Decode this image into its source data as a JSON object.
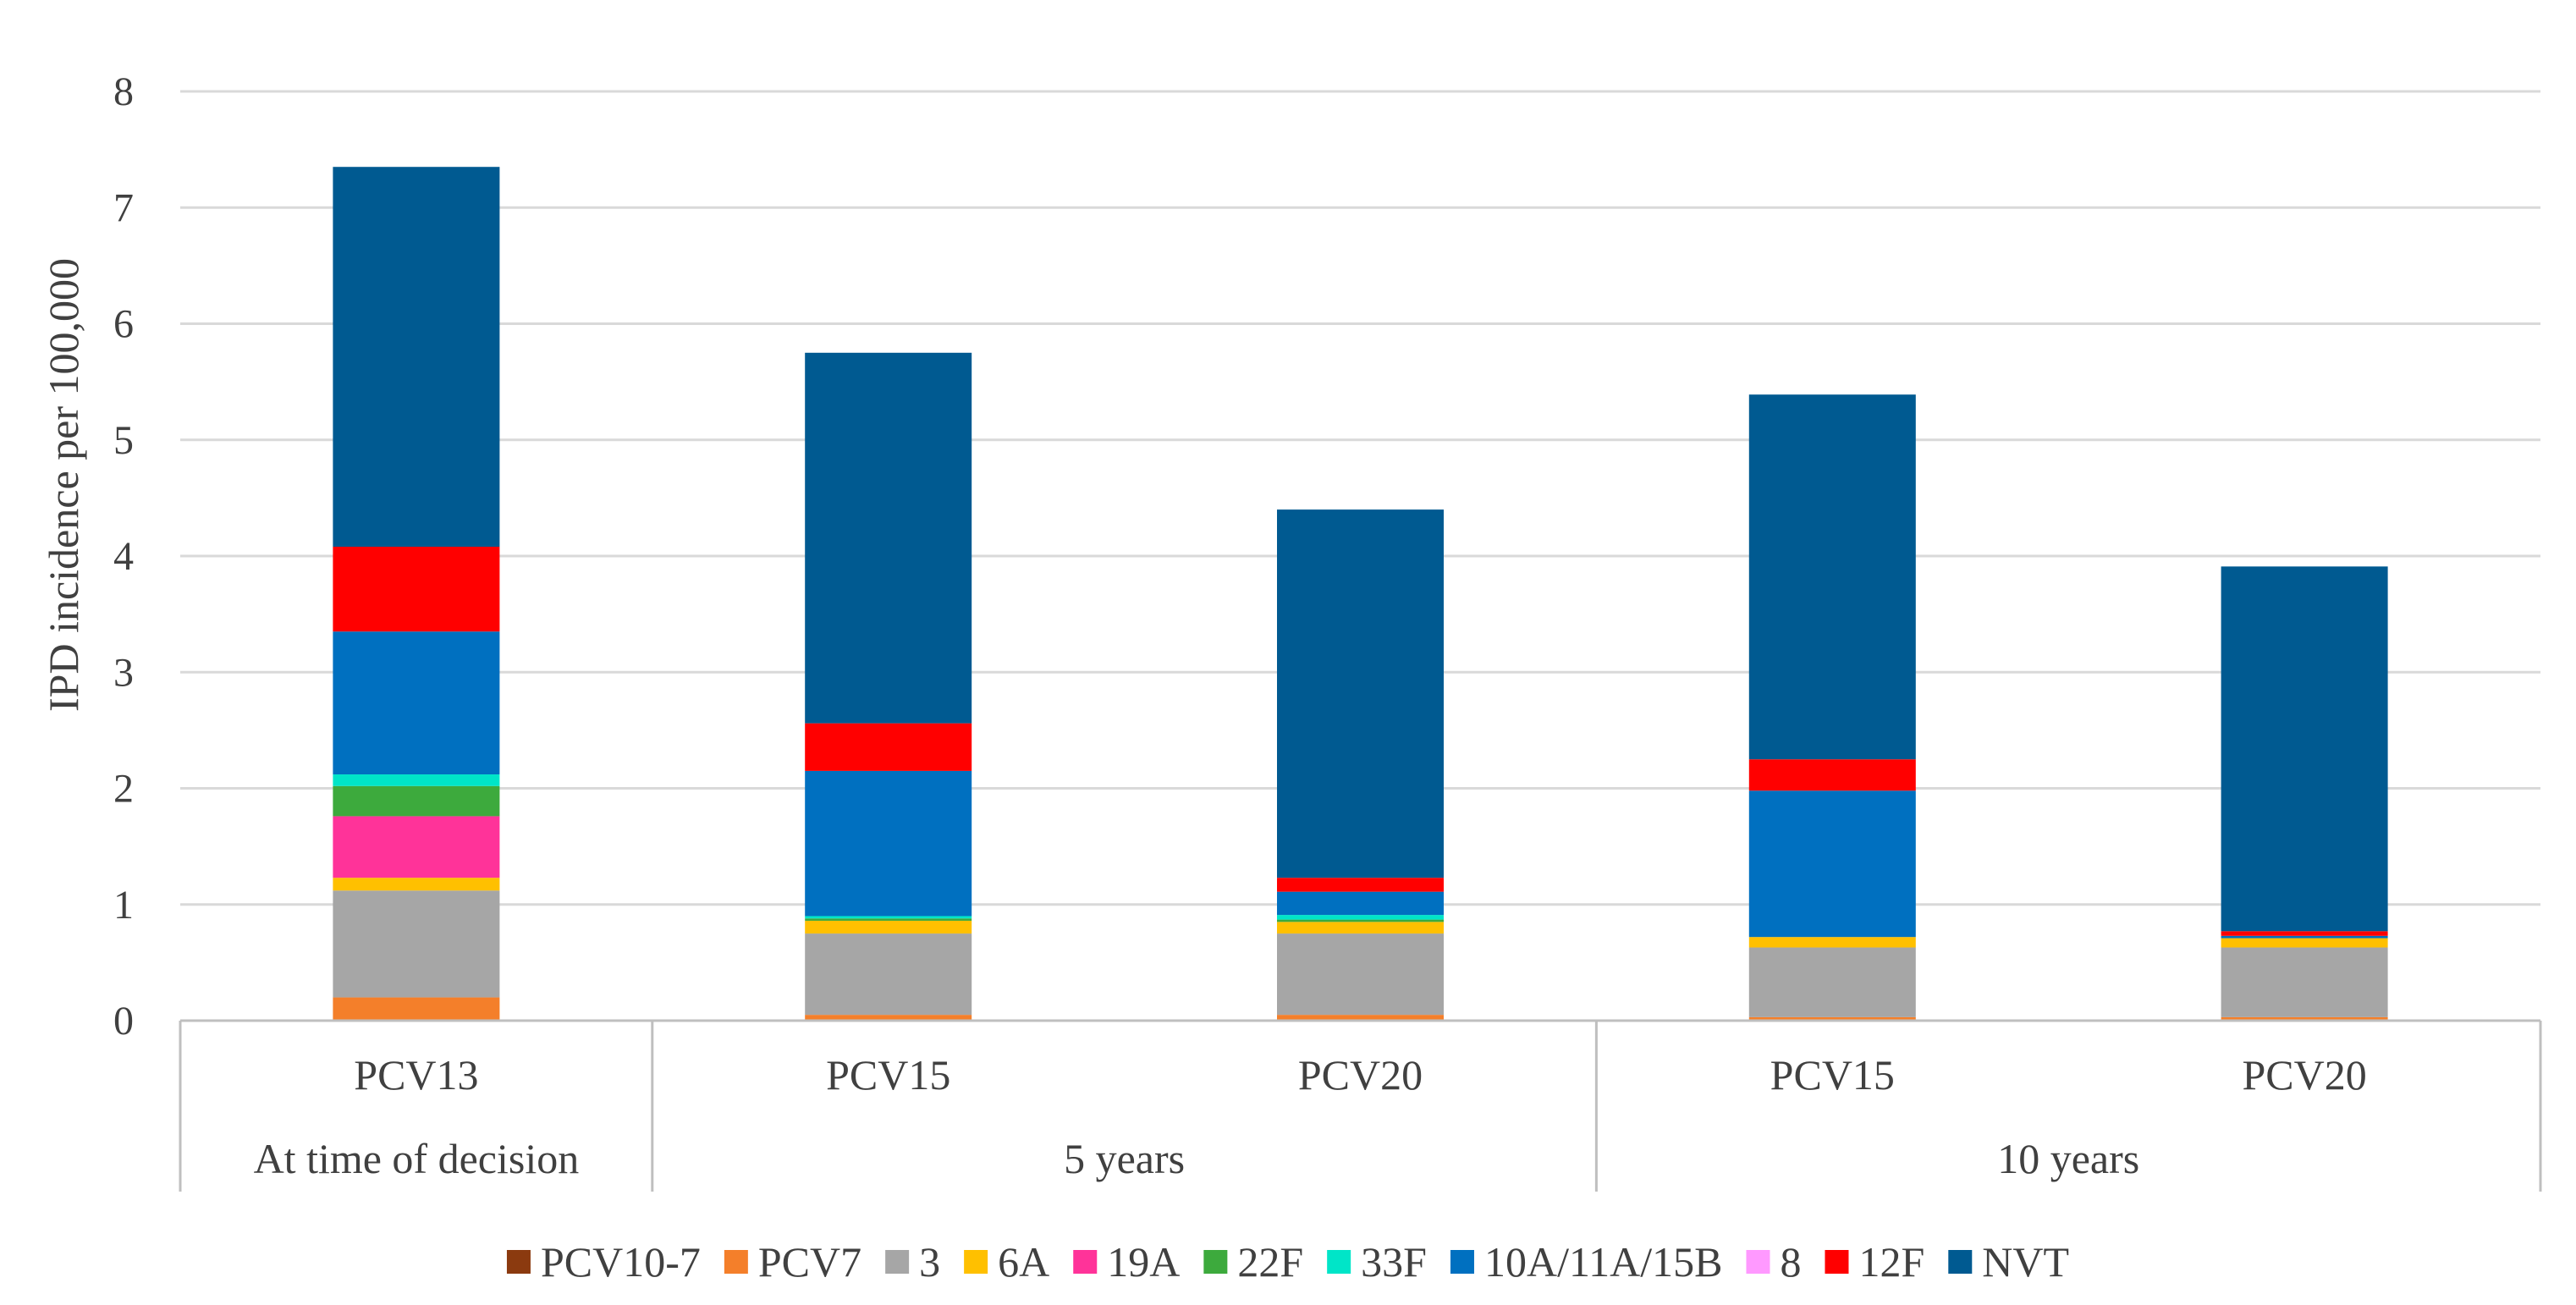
{
  "chart_data": {
    "type": "bar",
    "stacked": true,
    "title": "",
    "xlabel": "",
    "ylabel": "IPD incidence per 100,000",
    "ylim": [
      0,
      8
    ],
    "yticks": [
      0,
      1,
      2,
      3,
      4,
      5,
      6,
      7,
      8
    ],
    "grid": true,
    "legend_position": "bottom",
    "categories": [
      "PCV13",
      "PCV15",
      "PCV20",
      "PCV15",
      "PCV20"
    ],
    "groups": [
      {
        "label": "At time of decision",
        "categories": [
          0
        ]
      },
      {
        "label": "5 years",
        "categories": [
          1,
          2
        ]
      },
      {
        "label": "10 years",
        "categories": [
          3,
          4
        ]
      }
    ],
    "series": [
      {
        "name": "PCV10-7",
        "color": "#8B3A0F",
        "values": [
          0.0,
          0.0,
          0.0,
          0.0,
          0.0
        ]
      },
      {
        "name": "PCV7",
        "color": "#F47F2A",
        "values": [
          0.2,
          0.05,
          0.05,
          0.03,
          0.03
        ]
      },
      {
        "name": "3",
        "color": "#A6A6A6",
        "values": [
          0.92,
          0.7,
          0.7,
          0.6,
          0.6
        ]
      },
      {
        "name": "6A",
        "color": "#FFC000",
        "values": [
          0.11,
          0.11,
          0.1,
          0.09,
          0.08
        ]
      },
      {
        "name": "19A",
        "color": "#FF3399",
        "values": [
          0.53,
          0.0,
          0.0,
          0.0,
          0.0
        ]
      },
      {
        "name": "22F",
        "color": "#3DAA3D",
        "values": [
          0.26,
          0.02,
          0.02,
          0.0,
          0.0
        ]
      },
      {
        "name": "33F",
        "color": "#00E5C8",
        "values": [
          0.1,
          0.02,
          0.04,
          0.0,
          0.0
        ]
      },
      {
        "name": "10A/11A/15B",
        "color": "#0070C0",
        "values": [
          1.23,
          1.25,
          0.2,
          1.26,
          0.02
        ]
      },
      {
        "name": "8",
        "color": "#FF99FF",
        "values": [
          0.0,
          0.0,
          0.0,
          0.0,
          0.0
        ]
      },
      {
        "name": "12F",
        "color": "#FF0000",
        "values": [
          0.73,
          0.41,
          0.12,
          0.27,
          0.04
        ]
      },
      {
        "name": "NVT",
        "color": "#005A91",
        "values": [
          3.27,
          3.19,
          3.17,
          3.14,
          3.14
        ]
      }
    ]
  }
}
